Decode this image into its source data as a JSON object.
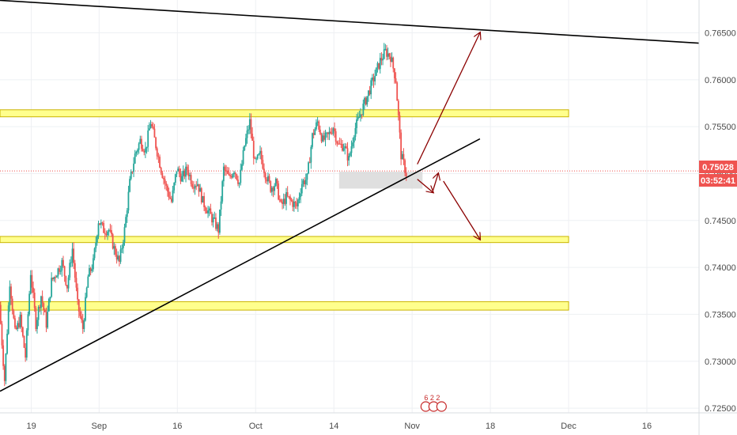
{
  "chart_data": {
    "type": "candlestick",
    "symbol_hint": "",
    "y_axis": {
      "position": "right",
      "min": 0.7245,
      "max": 0.7685,
      "ticks": [
        0.725,
        0.73,
        0.735,
        0.74,
        0.745,
        0.75,
        0.755,
        0.76,
        0.765
      ],
      "tick_labels": [
        "0.72500",
        "0.73000",
        "0.73500",
        "0.74000",
        "0.74500",
        "0.75000",
        "0.75500",
        "0.76000",
        "0.76500"
      ]
    },
    "x_axis": {
      "ticks": [
        {
          "day": 0,
          "label": "19"
        },
        {
          "day": 13,
          "label": "Sep"
        },
        {
          "day": 28,
          "label": "16"
        },
        {
          "day": 43,
          "label": "Oct"
        },
        {
          "day": 58,
          "label": "14"
        },
        {
          "day": 73,
          "label": "Nov"
        },
        {
          "day": 88,
          "label": "18"
        },
        {
          "day": 103,
          "label": "Dec"
        },
        {
          "day": 118,
          "label": "16"
        }
      ],
      "day_min": -6,
      "day_max": 128
    },
    "current_price": {
      "value": 0.75028,
      "label": "0.75028",
      "countdown": "03:52:41",
      "color": "#ef5350"
    },
    "ohlc_close_path": [
      [
        -6,
        0.736
      ],
      [
        -5,
        0.728
      ],
      [
        -4,
        0.7385
      ],
      [
        -3,
        0.733
      ],
      [
        -2,
        0.7345
      ],
      [
        -1,
        0.7305
      ],
      [
        0,
        0.7395
      ],
      [
        1,
        0.734
      ],
      [
        2,
        0.737
      ],
      [
        3,
        0.734
      ],
      [
        4,
        0.7385
      ],
      [
        5,
        0.7395
      ],
      [
        6,
        0.7405
      ],
      [
        7,
        0.738
      ],
      [
        8,
        0.742
      ],
      [
        9,
        0.736
      ],
      [
        10,
        0.7335
      ],
      [
        11,
        0.739
      ],
      [
        12,
        0.7405
      ],
      [
        13,
        0.745
      ],
      [
        14,
        0.744
      ],
      [
        15,
        0.744
      ],
      [
        16,
        0.742
      ],
      [
        17,
        0.7405
      ],
      [
        18,
        0.744
      ],
      [
        19,
        0.749
      ],
      [
        20,
        0.752
      ],
      [
        21,
        0.7535
      ],
      [
        22,
        0.7525
      ],
      [
        23,
        0.7555
      ],
      [
        24,
        0.753
      ],
      [
        25,
        0.7505
      ],
      [
        26,
        0.7485
      ],
      [
        27,
        0.747
      ],
      [
        28,
        0.7505
      ],
      [
        29,
        0.7495
      ],
      [
        30,
        0.7505
      ],
      [
        31,
        0.749
      ],
      [
        32,
        0.749
      ],
      [
        33,
        0.747
      ],
      [
        34,
        0.746
      ],
      [
        35,
        0.745
      ],
      [
        36,
        0.744
      ],
      [
        37,
        0.7505
      ],
      [
        38,
        0.7495
      ],
      [
        39,
        0.7505
      ],
      [
        40,
        0.749
      ],
      [
        41,
        0.753
      ],
      [
        42,
        0.7555
      ],
      [
        43,
        0.751
      ],
      [
        44,
        0.752
      ],
      [
        45,
        0.75
      ],
      [
        46,
        0.7485
      ],
      [
        47,
        0.749
      ],
      [
        48,
        0.7465
      ],
      [
        49,
        0.7475
      ],
      [
        50,
        0.747
      ],
      [
        51,
        0.7465
      ],
      [
        52,
        0.749
      ],
      [
        53,
        0.7495
      ],
      [
        54,
        0.754
      ],
      [
        55,
        0.7555
      ],
      [
        56,
        0.7535
      ],
      [
        57,
        0.754
      ],
      [
        58,
        0.755
      ],
      [
        59,
        0.753
      ],
      [
        60,
        0.753
      ],
      [
        61,
        0.7515
      ],
      [
        62,
        0.7545
      ],
      [
        63,
        0.756
      ],
      [
        64,
        0.7575
      ],
      [
        65,
        0.759
      ],
      [
        66,
        0.7605
      ],
      [
        67,
        0.762
      ],
      [
        68,
        0.763
      ],
      [
        69,
        0.7625
      ],
      [
        70,
        0.76
      ],
      [
        71,
        0.752
      ],
      [
        72,
        0.75
      ]
    ],
    "horizontal_zones": [
      {
        "name": "",
        "low": 0.75605,
        "high": 0.7568,
        "day_end": 103,
        "color": "#ffff8d",
        "border": "#c9b400"
      },
      {
        "name": "",
        "low": 0.74265,
        "high": 0.7433,
        "day_end": 103,
        "color": "#ffff8d",
        "border": "#c9b400"
      },
      {
        "name": "",
        "low": 0.73545,
        "high": 0.73635,
        "day_end": 103,
        "color": "#ffff8d",
        "border": "#c9b400"
      }
    ],
    "grey_box": {
      "low": 0.7484,
      "high": 0.7502,
      "day_start": 59,
      "day_end": 75,
      "color": "#d9d9d9"
    },
    "trendlines": [
      {
        "name": "upper-resistance-line",
        "from": [
          -13,
          0.7687
        ],
        "to": [
          128,
          0.7639
        ],
        "color": "#000000"
      },
      {
        "name": "rising-support-line",
        "from": [
          -6,
          0.7268
        ],
        "to": [
          86,
          0.7537
        ],
        "color": "#000000"
      }
    ],
    "arrows": [
      {
        "name": "arrow-up-target",
        "from": [
          74,
          0.751
        ],
        "to": [
          86,
          0.765
        ],
        "color": "#8b0000"
      },
      {
        "name": "arrow-small-down",
        "from": [
          74,
          0.7494
        ],
        "to": [
          77,
          0.748
        ],
        "color": "#8b0000"
      },
      {
        "name": "arrow-small-up",
        "from": [
          77,
          0.7482
        ],
        "to": [
          78,
          0.75
        ],
        "color": "#8b0000"
      },
      {
        "name": "arrow-down-target",
        "from": [
          79,
          0.7492
        ],
        "to": [
          86,
          0.743
        ],
        "color": "#8b0000"
      }
    ],
    "badge": {
      "text": "6 2 2",
      "day": 75
    }
  }
}
